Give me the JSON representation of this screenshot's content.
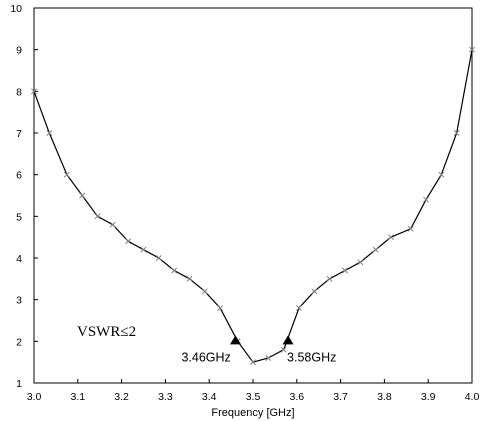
{
  "chart_data": {
    "type": "line",
    "title": "",
    "xlabel": "Frequency [GHz]",
    "ylabel": "",
    "xlim": [
      3.0,
      4.0
    ],
    "ylim": [
      1,
      10
    ],
    "x_ticks": [
      "3.0",
      "3.1",
      "3.2",
      "3.3",
      "3.4",
      "3.5",
      "3.6",
      "3.7",
      "3.8",
      "3.9",
      "4.0"
    ],
    "y_ticks": [
      "1",
      "2",
      "3",
      "4",
      "5",
      "6",
      "7",
      "8",
      "9",
      "10"
    ],
    "grid": false,
    "legend": "none",
    "series": [
      {
        "color": "#000000",
        "marker_color": "#808080",
        "x": [
          3.0,
          3.035,
          3.075,
          3.11,
          3.145,
          3.18,
          3.215,
          3.25,
          3.285,
          3.32,
          3.355,
          3.39,
          3.425,
          3.465,
          3.5,
          3.535,
          3.57,
          3.605,
          3.64,
          3.675,
          3.71,
          3.745,
          3.78,
          3.815,
          3.86,
          3.895,
          3.93,
          3.965,
          4.0
        ],
        "y": [
          8.0,
          7.0,
          6.0,
          5.5,
          5.0,
          4.8,
          4.4,
          4.2,
          4.0,
          3.7,
          3.5,
          3.2,
          2.8,
          2.0,
          1.5,
          1.6,
          1.8,
          2.8,
          3.2,
          3.5,
          3.7,
          3.9,
          4.2,
          4.5,
          4.7,
          5.4,
          6.0,
          7.0,
          9.0
        ]
      }
    ],
    "markers": [
      {
        "x": 3.46,
        "y": 2.0,
        "label": "3.46GHz"
      },
      {
        "x": 3.58,
        "y": 2.0,
        "label": "3.58GHz"
      }
    ],
    "annotations": [
      {
        "text": "VSWR≤2"
      }
    ]
  }
}
